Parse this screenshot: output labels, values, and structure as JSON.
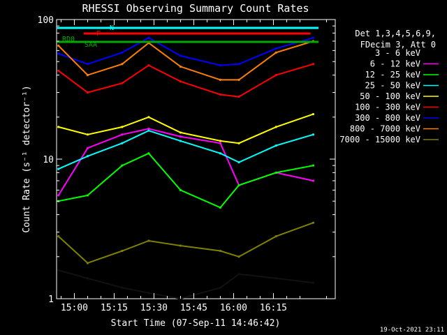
{
  "chart_data": {
    "type": "line",
    "title": "RHESSI Observing Summary Count Rates",
    "xlabel": "Start Time (07-Sep-11 14:46:42)",
    "ylabel": "Count Rate (s⁻¹ detector⁻¹)",
    "yscale": "log",
    "ylim": [
      1,
      100
    ],
    "xlim_minutes": [
      -6.7,
      98.3
    ],
    "x_tick_labels": [
      "15:00",
      "15:15",
      "15:30",
      "15:45",
      "16:00",
      "16:15"
    ],
    "x_tick_minutes": [
      0,
      15,
      30,
      45,
      60,
      75
    ],
    "y_tick_labels": [
      "1",
      "10",
      "100"
    ],
    "y_tick_values": [
      1,
      10,
      100
    ],
    "legend_title": [
      "Det 1,3,4,5,6,9,",
      "FDecim 3, Att 0"
    ],
    "legend_position": "right",
    "timestamp": "19-Oct-2021 23:11",
    "series": [
      {
        "name": "3 - 6 keV",
        "color": "#000000",
        "values": [
          1.6,
          1.4,
          1.2,
          1.1,
          1.0,
          1.2,
          1.5,
          1.4,
          1.3
        ]
      },
      {
        "name": "6 - 12 keV",
        "color": "#ff00ff",
        "values": [
          5.5,
          12.0,
          15.0,
          16.5,
          14.5,
          13.0,
          6.5,
          8.0,
          7.0
        ]
      },
      {
        "name": "12 - 25 keV",
        "color": "#00ff00",
        "values": [
          5.0,
          5.5,
          9.0,
          11.0,
          6.0,
          4.5,
          6.5,
          8.0,
          9.0
        ]
      },
      {
        "name": "25 - 50 keV",
        "color": "#00ffff",
        "values": [
          8.5,
          10.5,
          13.0,
          16.0,
          13.5,
          11.0,
          9.5,
          12.5,
          15.0
        ]
      },
      {
        "name": "50 - 100 keV",
        "color": "#ffff00",
        "values": [
          17.0,
          15.0,
          17.0,
          20.0,
          15.5,
          13.5,
          13.0,
          17.0,
          21.0
        ]
      },
      {
        "name": "100 - 300 keV",
        "color": "#ff0000",
        "values": [
          43.0,
          30.0,
          35.0,
          47.0,
          36.0,
          29.0,
          28.0,
          40.0,
          48.0
        ]
      },
      {
        "name": "300 - 800 keV",
        "color": "#0000ff",
        "values": [
          57.0,
          48.0,
          58.0,
          74.0,
          55.0,
          47.0,
          48.0,
          62.0,
          74.0
        ]
      },
      {
        "name": "800 - 7000 keV",
        "color": "#ff8000",
        "values": [
          65.0,
          40.0,
          48.0,
          68.0,
          46.0,
          37.0,
          37.0,
          58.0,
          70.0
        ]
      },
      {
        "name": "7000 - 15000 keV",
        "color": "#808000",
        "values": [
          2.8,
          1.8,
          2.2,
          2.6,
          2.4,
          2.2,
          2.0,
          2.8,
          3.5
        ]
      }
    ],
    "series_x_minutes": [
      -6,
      5,
      18,
      28,
      40,
      55,
      62,
      76,
      90
    ],
    "annotations": [
      {
        "text": "N",
        "color": "#00ffff",
        "minutes_start": -6.5,
        "minutes_end": 92
      },
      {
        "text": "F",
        "color": "#ff0000",
        "minutes_start": 3.5,
        "minutes_end": 89
      },
      {
        "text": "RD0",
        "color": "#00aa00",
        "minutes_start": -6.5,
        "minutes_end": 92
      },
      {
        "text": "SAA",
        "color": "#00aa00"
      }
    ]
  }
}
